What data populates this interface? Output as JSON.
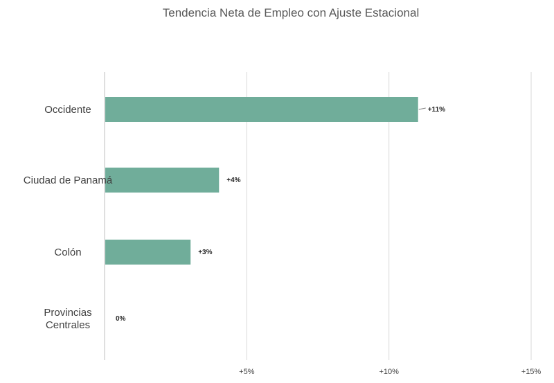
{
  "chart_data": {
    "type": "bar",
    "orientation": "horizontal",
    "title": "Tendencia Neta de Empleo con Ajuste Estacional",
    "categories": [
      [
        "Occidente"
      ],
      [
        "Ciudad de Panamá"
      ],
      [
        "Colón"
      ],
      [
        "Provincias",
        "Centrales"
      ]
    ],
    "values": [
      11,
      4,
      3,
      0
    ],
    "data_labels": [
      "+11%",
      "+4%",
      "+3%",
      "0%"
    ],
    "xlim": [
      0,
      15
    ],
    "xticks": [
      5,
      10,
      15
    ],
    "xtick_labels": [
      "+5%",
      "+10%",
      "+15%"
    ],
    "grid": true,
    "legend": false,
    "bar_color": "#70ad9a"
  }
}
